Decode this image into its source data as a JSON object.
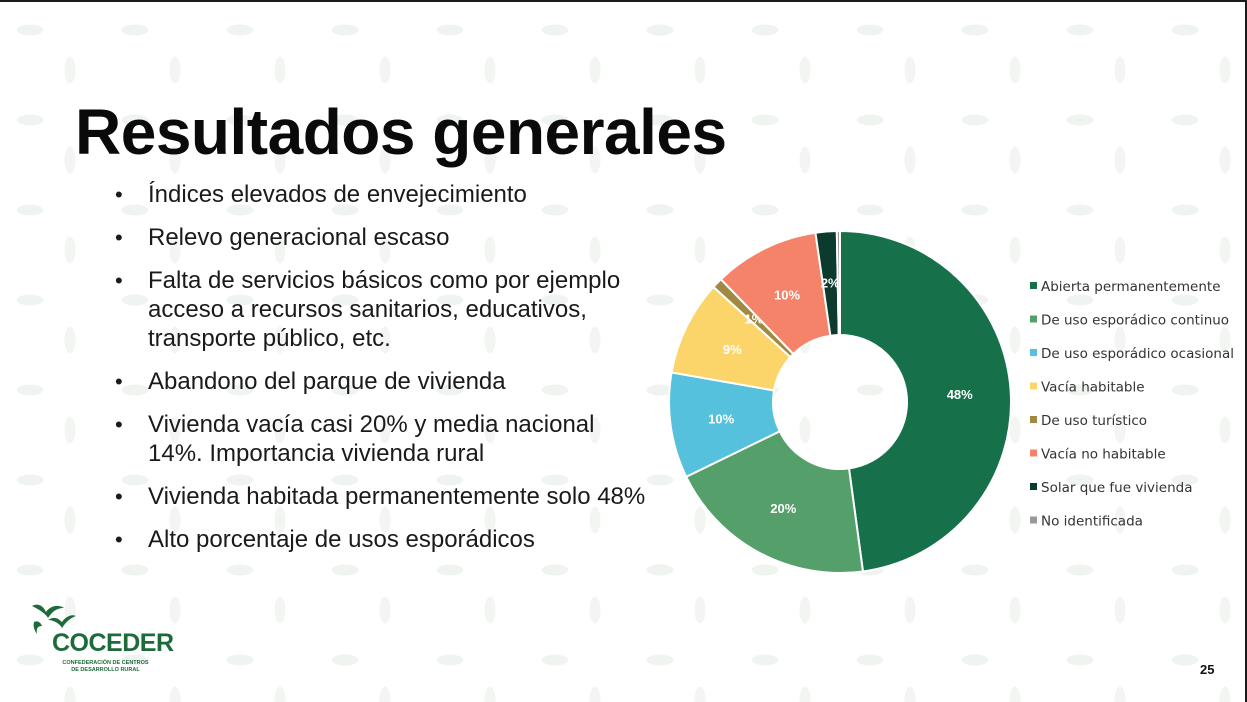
{
  "slide": {
    "title": "Resultados generales",
    "page_number": "25",
    "bullets": [
      "Índices elevados de envejecimiento",
      "Relevo generacional escaso",
      "Falta de servicios básicos como por ejemplo acceso a recursos sanitarios, educativos, transporte público, etc.",
      "Abandono del parque de vivienda",
      "Vivienda vacía casi 20% y media nacional 14%. Importancia vivienda rural",
      "Vivienda habitada permanentemente solo 48%",
      "Alto porcentaje de usos esporádicos"
    ]
  },
  "logo": {
    "name": "COCEDER",
    "subtitle": "CONFEDERACIÓN DE CENTROS DE DESARROLLO RURAL",
    "icon": "swallow-birds-icon"
  },
  "chart_data": {
    "type": "pie",
    "variant": "donut",
    "title": "",
    "legend_position": "right",
    "categories": [
      "Abierta permanentemente",
      "De uso esporádico continuo",
      "De uso esporádico ocasional",
      "Vacía habitable",
      "De uso turístico",
      "Vacía no habitable",
      "Solar que fue vivienda",
      "No identificada"
    ],
    "values": [
      48,
      20,
      10,
      9,
      1,
      10,
      2,
      0.3
    ],
    "data_labels": [
      "48%",
      "20%",
      "10%",
      "9%",
      "1%",
      "10%",
      "2%",
      ""
    ],
    "colors": [
      "#16704a",
      "#55a06a",
      "#56c1dc",
      "#fbd46a",
      "#a08a42",
      "#f5836a",
      "#0c3a2c",
      "#9a9a9a"
    ]
  }
}
